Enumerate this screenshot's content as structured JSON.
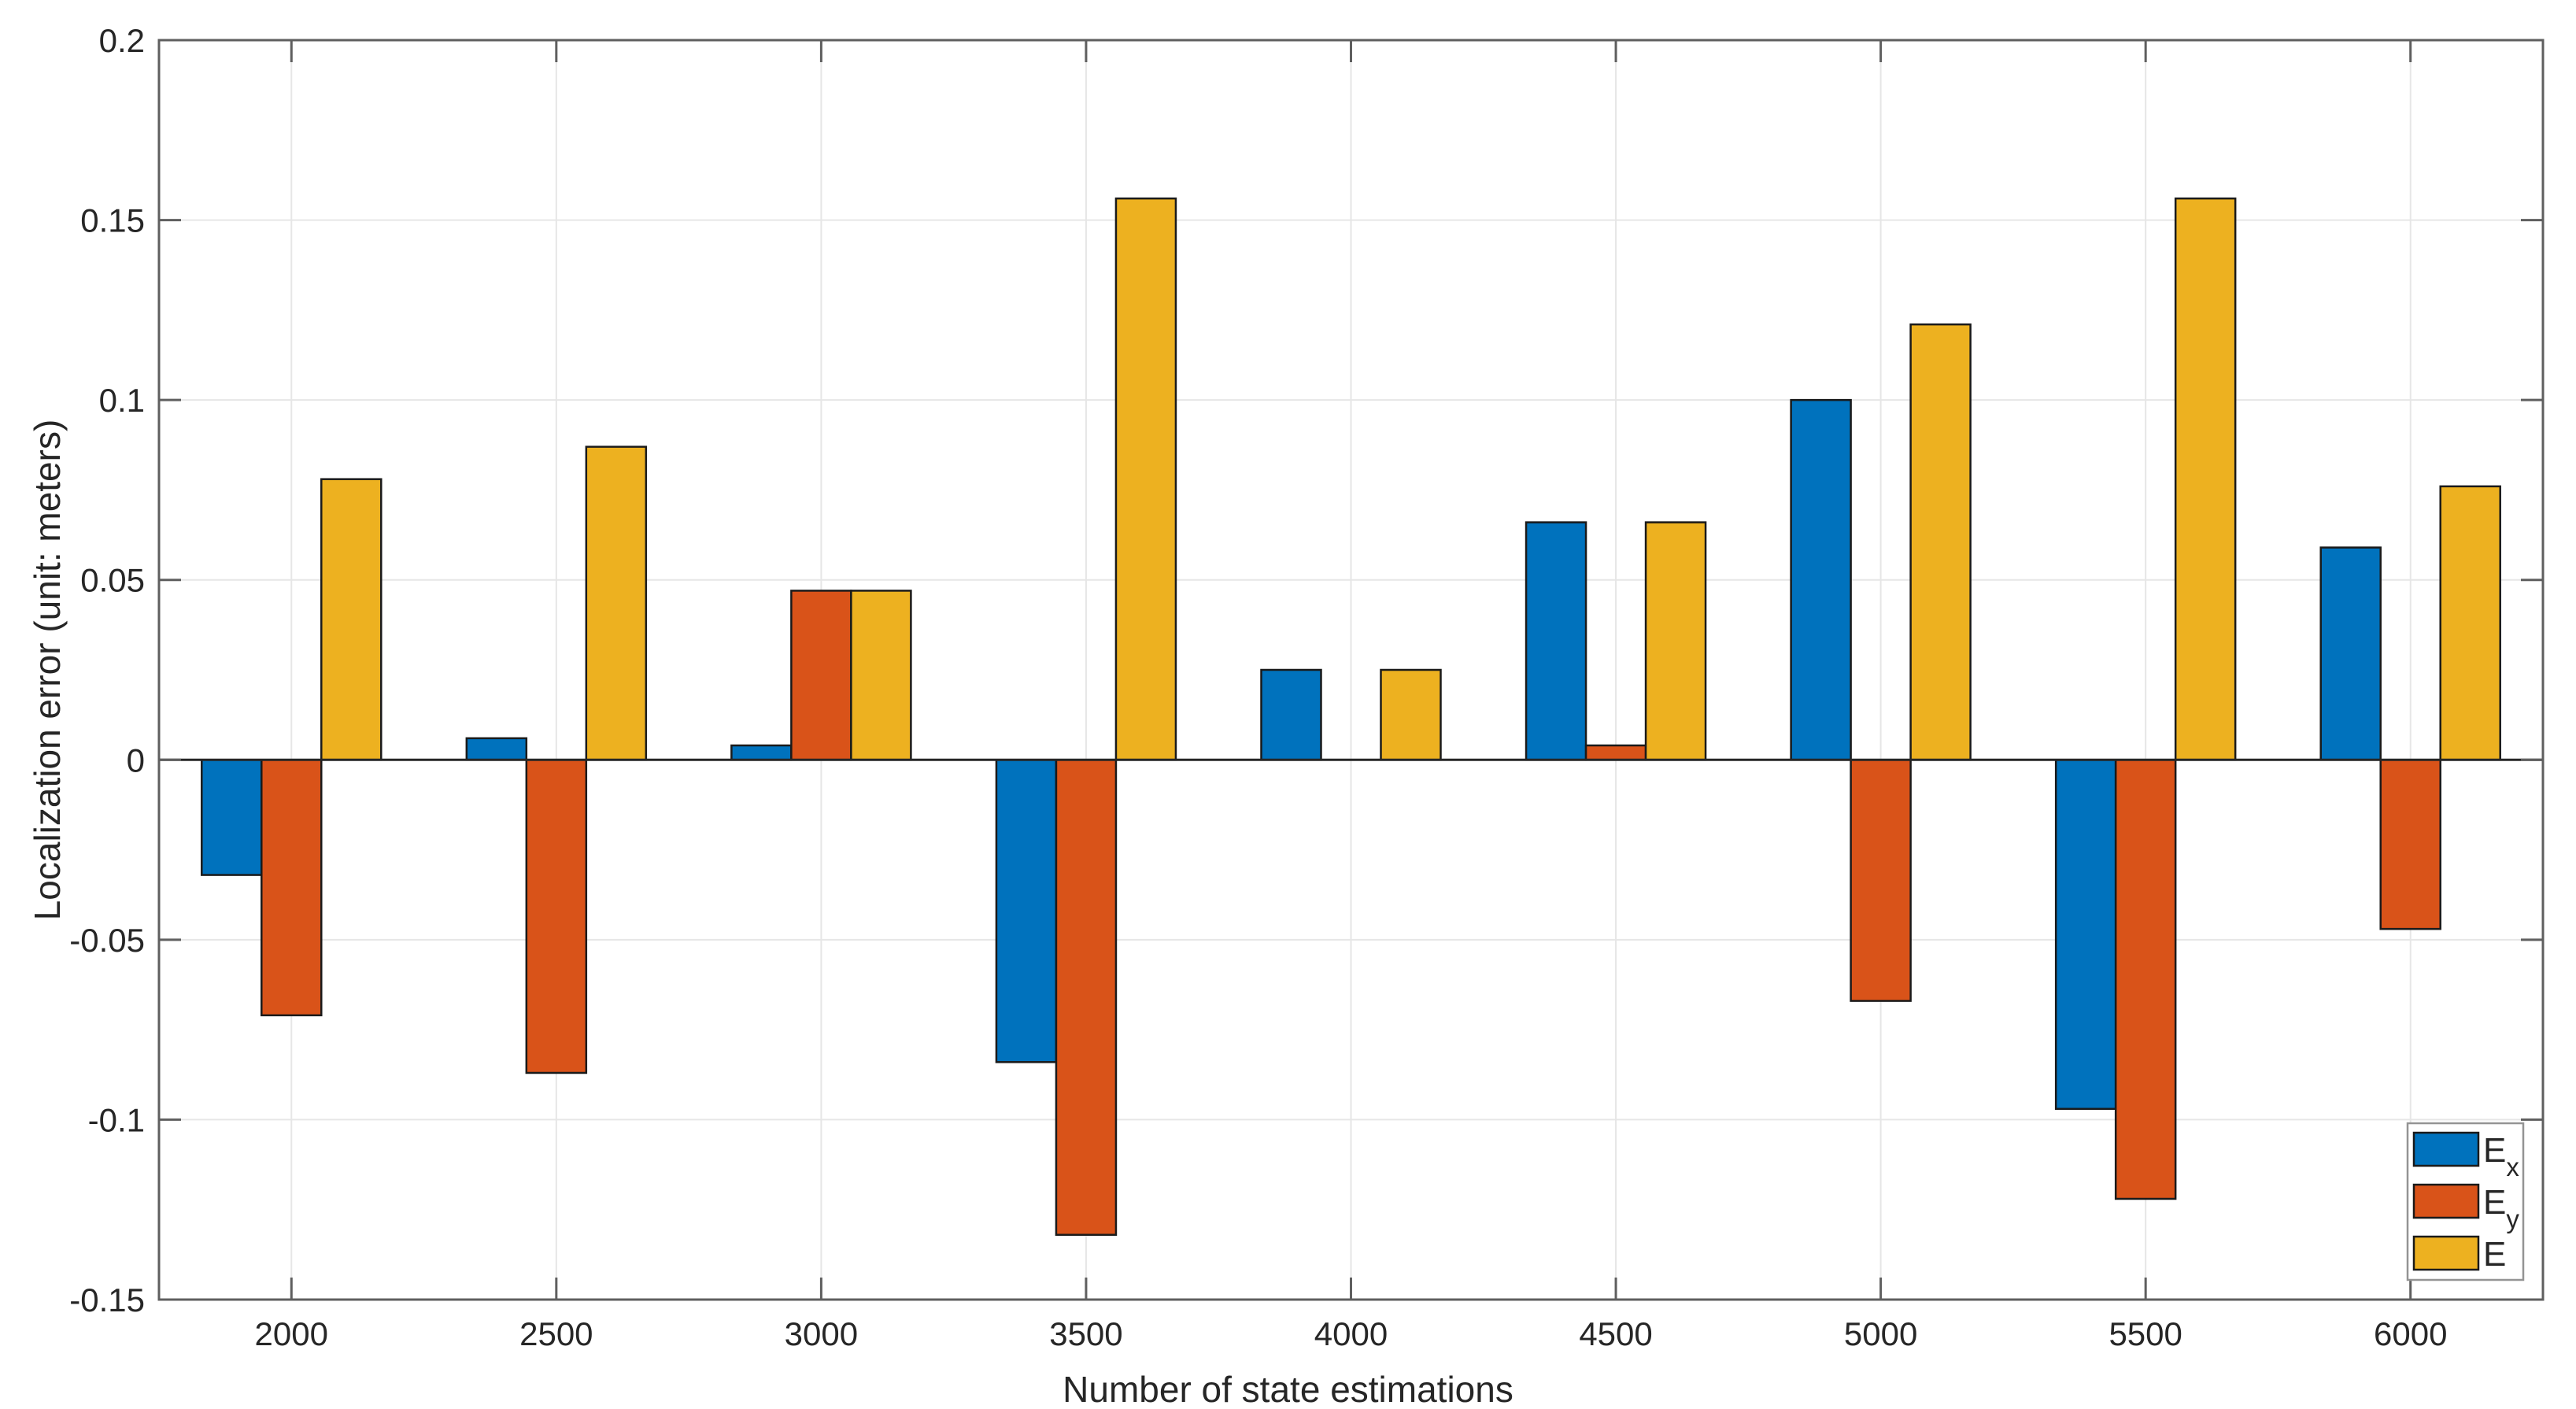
{
  "chart_data": {
    "type": "bar",
    "title": "",
    "xlabel": "Number of state estimations",
    "ylabel": "Localization error (unit: meters)",
    "categories": [
      "2000",
      "2500",
      "3000",
      "3500",
      "4000",
      "4500",
      "5000",
      "5500",
      "6000"
    ],
    "series": [
      {
        "name": "Ex",
        "legend_main": "E",
        "legend_sub": "x",
        "color": "#0072BD",
        "values": [
          -0.032,
          0.006,
          0.004,
          -0.084,
          0.025,
          0.066,
          0.1,
          -0.097,
          0.059
        ]
      },
      {
        "name": "Ey",
        "legend_main": "E",
        "legend_sub": "y",
        "color": "#D95319",
        "values": [
          -0.071,
          -0.087,
          0.047,
          -0.132,
          0.0,
          0.004,
          -0.067,
          -0.122,
          -0.047
        ]
      },
      {
        "name": "E",
        "legend_main": "E",
        "legend_sub": "",
        "color": "#EDB120",
        "values": [
          0.078,
          0.087,
          0.047,
          0.156,
          0.025,
          0.066,
          0.121,
          0.156,
          0.076
        ]
      }
    ],
    "ylim": [
      -0.15,
      0.2
    ],
    "ytick_values": [
      0.2,
      0.15,
      0.1,
      0.05,
      0,
      -0.05,
      -0.1,
      -0.15
    ],
    "ytick_labels": [
      "0.2",
      "0.15",
      "0.1",
      "0.05",
      "0",
      "-0.05",
      "-0.1",
      "-0.15"
    ],
    "grid": true,
    "legend_position": "bottom-right",
    "colors": {
      "background": "#ffffff",
      "grid": "#e6e6e6",
      "frame": "#5f5f5f",
      "zero_line": "#262626",
      "text": "#262626",
      "bar_edge": "#1a1a1a",
      "legend_border": "#949494",
      "legend_background": "#ffffff"
    }
  }
}
